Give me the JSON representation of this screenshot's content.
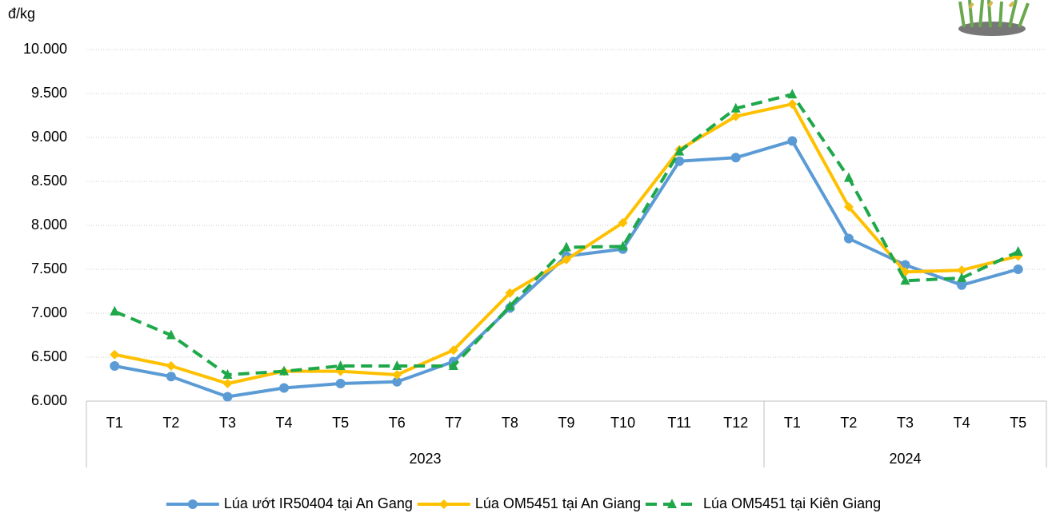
{
  "chart_data": {
    "type": "line",
    "y_label": "đ/kg",
    "groups": [
      {
        "name": "2023",
        "categories": [
          "T1",
          "T2",
          "T3",
          "T4",
          "T5",
          "T6",
          "T7",
          "T8",
          "T9",
          "T10",
          "T11",
          "T12"
        ]
      },
      {
        "name": "2024",
        "categories": [
          "T1",
          "T2",
          "T3",
          "T4",
          "T5"
        ]
      }
    ],
    "ylim": [
      6000,
      10000
    ],
    "yticks": [
      {
        "value": 6000,
        "label": "6.000"
      },
      {
        "value": 6500,
        "label": "6.500"
      },
      {
        "value": 7000,
        "label": "7.000"
      },
      {
        "value": 7500,
        "label": "7.500"
      },
      {
        "value": 8000,
        "label": "8.000"
      },
      {
        "value": 8500,
        "label": "8.500"
      },
      {
        "value": 9000,
        "label": "9.000"
      },
      {
        "value": 9500,
        "label": "9.500"
      },
      {
        "value": 10000,
        "label": "10.000"
      }
    ],
    "grid": true,
    "legend": "bottom",
    "series": [
      {
        "name": "Lúa ướt IR50404 tại An Gang",
        "color": "#5b9bd5",
        "marker": "circle",
        "dashed": false,
        "values": [
          6400,
          6280,
          6050,
          6150,
          6200,
          6220,
          6450,
          7060,
          7650,
          7730,
          8730,
          8770,
          8960,
          7850,
          7550,
          7320,
          7500
        ]
      },
      {
        "name": "Lúa OM5451 tại An Giang",
        "color": "#ffc000",
        "marker": "diamond",
        "dashed": false,
        "values": [
          6530,
          6400,
          6200,
          6340,
          6340,
          6300,
          6580,
          7230,
          7610,
          8030,
          8860,
          9240,
          9380,
          8210,
          7470,
          7490,
          7650
        ]
      },
      {
        "name": "Lúa OM5451 tại Kiên Giang",
        "color": "#1fa84a",
        "marker": "triangle",
        "dashed": true,
        "values": [
          7020,
          6750,
          6300,
          6340,
          6400,
          6400,
          6400,
          7080,
          7750,
          7760,
          8840,
          9330,
          9490,
          8540,
          7370,
          7400,
          7700
        ]
      }
    ]
  }
}
